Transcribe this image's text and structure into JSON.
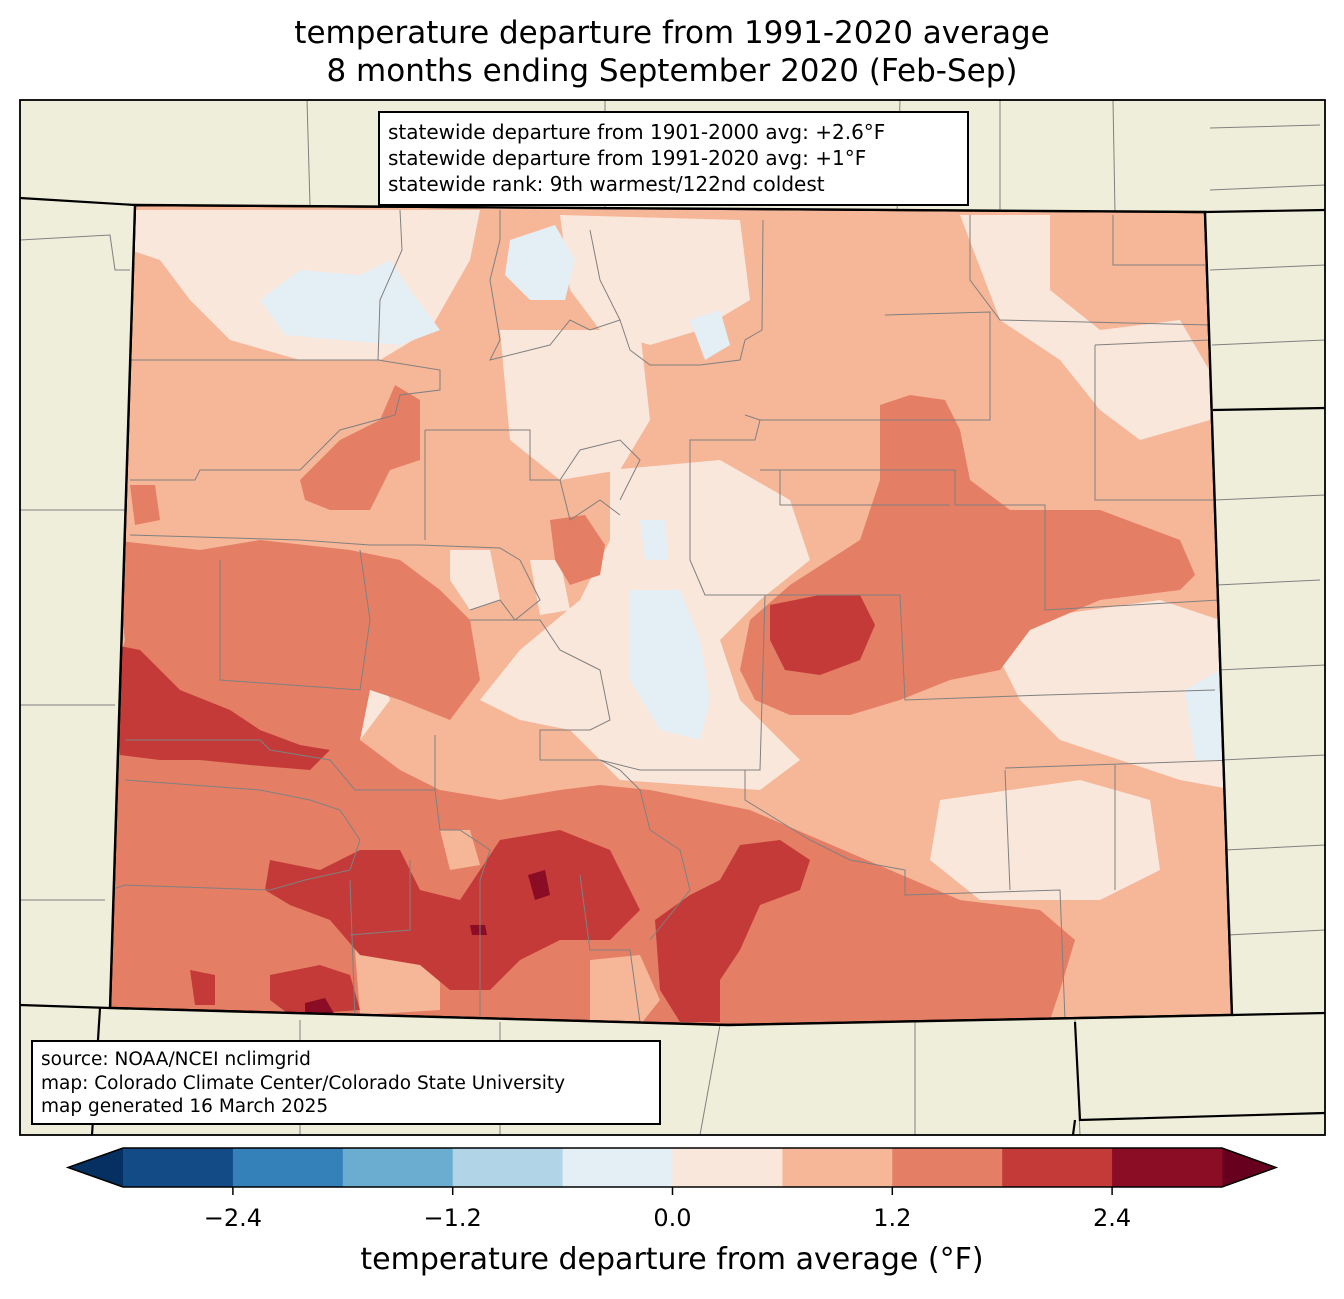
{
  "title": {
    "line1": "temperature departure from 1991-2020 average",
    "line2": "8 months ending September 2020 (Feb-Sep)"
  },
  "stats": {
    "line1": "statewide departure from 1901-2000 avg: +2.6°F",
    "line2": "statewide departure from 1991-2020 avg: +1°F",
    "line3": "statewide rank: 9th warmest/122nd coldest"
  },
  "source": {
    "line1": "source: NOAA/NCEI nclimgrid",
    "line2": "map: Colorado Climate Center/Colorado State University",
    "line3": "map generated 16 March 2025"
  },
  "colorbar": {
    "label": "temperature departure from average (°F)",
    "bounds": [
      -3.0,
      -2.4,
      -1.8,
      -1.2,
      -0.6,
      0.0,
      0.6,
      1.2,
      1.8,
      2.4,
      3.0
    ],
    "ticks": [
      {
        "value": -2.4,
        "label": "−2.4"
      },
      {
        "value": -1.2,
        "label": "−1.2"
      },
      {
        "value": 0.0,
        "label": "0.0"
      },
      {
        "value": 1.2,
        "label": "1.2"
      },
      {
        "value": 2.4,
        "label": "2.4"
      }
    ],
    "colors": [
      "#134b87",
      "#3480b9",
      "#6bacd1",
      "#b1d5e7",
      "#e4eef5",
      "#fae7dc",
      "#f6b698",
      "#e47e65",
      "#c33a38",
      "#8a0c25"
    ],
    "under_color": "#053061",
    "over_color": "#67001f"
  },
  "colors": {
    "land": "#efeedb",
    "state_border": "#000000",
    "county_border": "#808080"
  }
}
